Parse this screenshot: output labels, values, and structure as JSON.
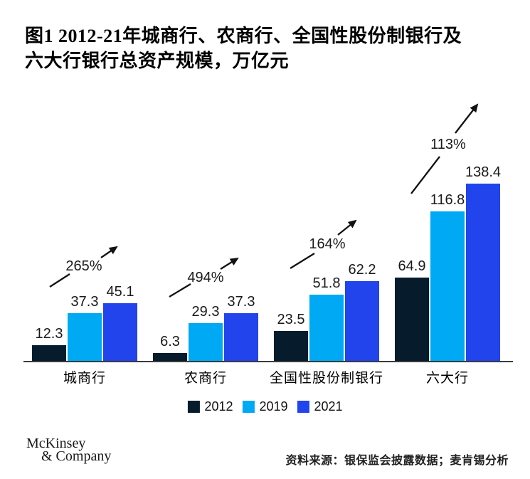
{
  "figure": {
    "title_line1": "图1 2012-21年城商行、农商行、全国性股份制银行及",
    "title_line2": "六大行银行总资产规模，万亿元"
  },
  "chart_data": {
    "type": "bar",
    "title": "图1 2012-21年城商行、农商行、全国性股份制银行及六大行银行总资产规模，万亿元",
    "unit": "万亿元",
    "categories": [
      "城商行",
      "农商行",
      "全国性股份制银行",
      "六大行"
    ],
    "series": [
      {
        "name": "2012",
        "color": "#061C2C",
        "values": [
          12.3,
          6.3,
          23.5,
          64.9
        ]
      },
      {
        "name": "2019",
        "color": "#00A9F4",
        "values": [
          37.3,
          29.3,
          51.8,
          116.8
        ]
      },
      {
        "name": "2021",
        "color": "#2244EC",
        "values": [
          45.1,
          37.3,
          62.2,
          138.4
        ]
      }
    ],
    "growth_labels": [
      "265%",
      "494%",
      "164%",
      "113%"
    ],
    "ylim": [
      0,
      145
    ],
    "grid": false,
    "legend_position": "bottom",
    "value_labels": true
  },
  "footer": {
    "logo_line1": "McKinsey",
    "logo_line2": "& Company",
    "source": "资料来源：银保监会披露数据；麦肯锡分析"
  },
  "colors": {
    "axis": "#3B3B3B",
    "arrow": "#121212",
    "text": "#111111"
  }
}
